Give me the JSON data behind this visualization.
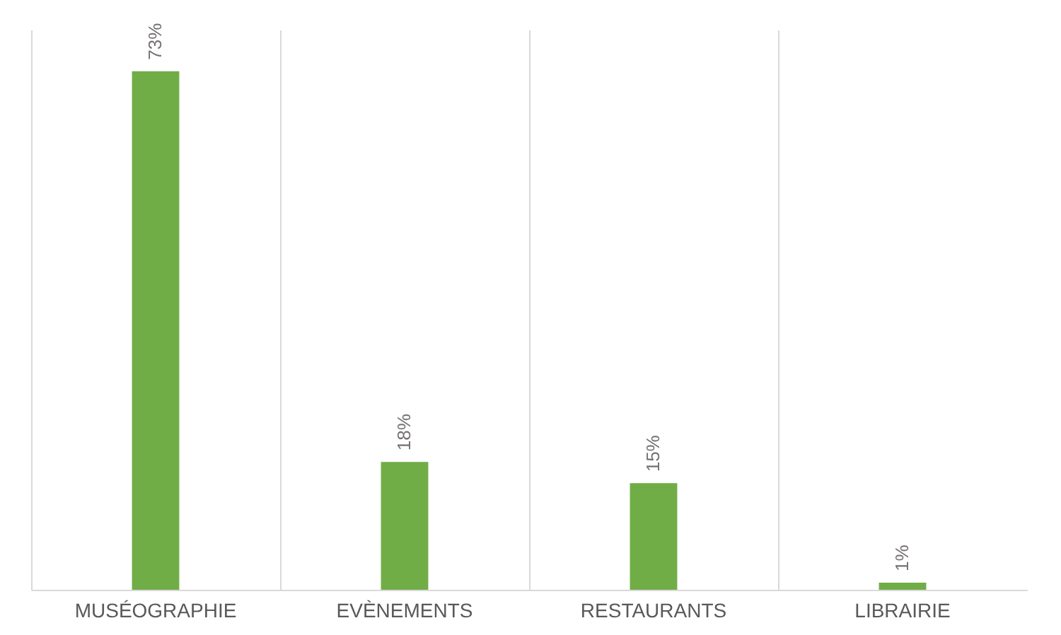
{
  "chart_data": {
    "type": "bar",
    "categories": [
      "MUSÉOGRAPHIE",
      "EVÈNEMENTS",
      "RESTAURANTS",
      "LIBRAIRIE"
    ],
    "values": [
      73,
      18,
      15,
      1
    ],
    "color": "#70ad47",
    "data_labels": true,
    "value_labels": [
      "73%",
      "18%",
      "15%",
      "1%"
    ],
    "grid": "x",
    "tick_labels": "x"
  }
}
